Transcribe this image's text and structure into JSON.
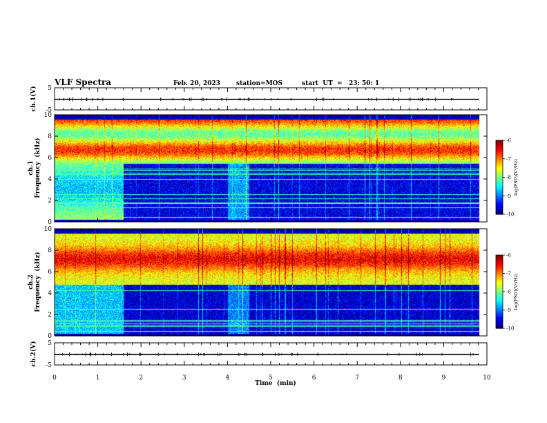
{
  "header": {
    "title": "VLF Spectra",
    "date": "Feb. 20, 2023",
    "station": "station=MOS",
    "start": "start  UT  =   23: 50: 1"
  },
  "chart_data": [
    {
      "type": "line",
      "name": "waveform-ch1",
      "ylabel": "ch.1(V)",
      "ylim": [
        -5,
        5
      ],
      "yticks": [
        "5",
        "-5"
      ],
      "xlim": [
        0,
        10
      ],
      "x": [
        0,
        9.82
      ],
      "values": [
        -0.2,
        -0.2
      ]
    },
    {
      "type": "heatmap",
      "name": "spectrogram-ch1",
      "ylabel": [
        "ch.1",
        "Frequency  (kHz)"
      ],
      "ylim": [
        0,
        10
      ],
      "yticks": [
        "0",
        "2",
        "4",
        "6",
        "8",
        "10"
      ],
      "xlim": [
        0,
        10
      ],
      "data_x_end": 9.82,
      "colorbar": {
        "label": "log(PSD)(V²/Hz)",
        "range": [
          -10,
          -6
        ],
        "ticks": [
          "-6",
          "-7",
          "-8",
          "-9",
          "-10"
        ]
      }
    },
    {
      "type": "heatmap",
      "name": "spectrogram-ch2",
      "ylabel": [
        "ch.2",
        "Frequency  (kHz)"
      ],
      "ylim": [
        0,
        10
      ],
      "yticks": [
        "0",
        "2",
        "4",
        "6",
        "8",
        "10"
      ],
      "xlim": [
        0,
        10
      ],
      "data_x_end": 9.82,
      "colorbar": {
        "label": "log(PSD)(V²/Hz)",
        "range": [
          -10,
          -6
        ],
        "ticks": [
          "-6",
          "-7",
          "-8",
          "-9",
          "-10"
        ]
      }
    },
    {
      "type": "line",
      "name": "waveform-ch2",
      "ylabel": "ch.2(V)",
      "ylim": [
        -5,
        5
      ],
      "yticks": [
        "5",
        "-5"
      ],
      "xlim": [
        0,
        10
      ],
      "x": [
        0,
        9.82
      ],
      "values": [
        -0.2,
        -0.2
      ]
    }
  ],
  "xaxis": {
    "label": "Time  (min)",
    "ticks": [
      "0",
      "1",
      "2",
      "3",
      "4",
      "5",
      "6",
      "7",
      "8",
      "9",
      "10"
    ]
  }
}
